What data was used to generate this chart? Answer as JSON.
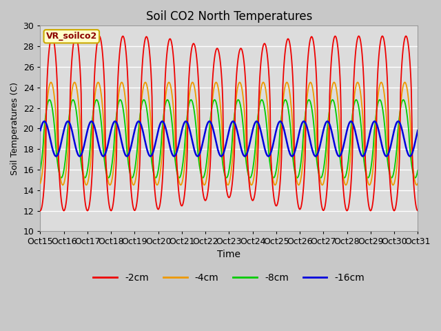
{
  "title": "Soil CO2 North Temperatures",
  "xlabel": "Time",
  "ylabel": "Soil Temperatures (C)",
  "ylim": [
    10,
    30
  ],
  "fig_facecolor": "#c8c8c8",
  "ax_facecolor": "#dcdcdc",
  "annotation_text": "VR_soilco2",
  "annotation_color": "#8B0000",
  "annotation_bg": "#ffffcc",
  "annotation_border": "#ccaa00",
  "xtick_labels": [
    "Oct 15",
    "Oct 16",
    "Oct 17",
    "Oct 18",
    "Oct 19",
    "Oct 20",
    "Oct 21",
    "Oct 22",
    "Oct 23",
    "Oct 24",
    "Oct 25",
    "Oct 26",
    "Oct 27",
    "Oct 28",
    "Oct 29",
    "Oct 30",
    "Oct 31"
  ],
  "series": {
    "-2cm": {
      "color": "#ee0000",
      "lw": 1.3
    },
    "-4cm": {
      "color": "#ee9900",
      "lw": 1.3
    },
    "-8cm": {
      "color": "#00cc00",
      "lw": 1.3
    },
    "-16cm": {
      "color": "#0000dd",
      "lw": 1.8
    }
  },
  "legend_labels": [
    "-2cm",
    "-4cm",
    "-8cm",
    "-16cm"
  ],
  "legend_colors": [
    "#ee0000",
    "#ee9900",
    "#00cc00",
    "#0000dd"
  ]
}
